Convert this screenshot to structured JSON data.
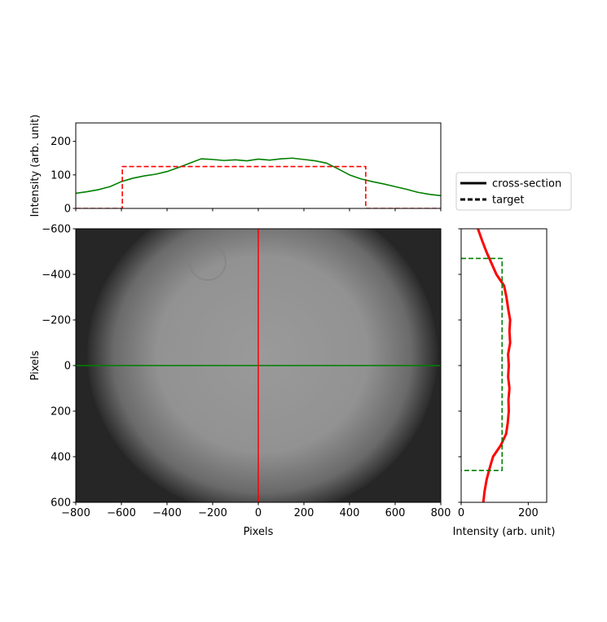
{
  "chart_data": [
    {
      "type": "line",
      "ylabel": "Intensity (arb. unit)",
      "xlim": [
        -800,
        800
      ],
      "ylim": [
        0,
        255
      ],
      "xticks": [
        -800,
        -600,
        -400,
        -200,
        0,
        200,
        400,
        600,
        800
      ],
      "yticks": [
        0,
        100,
        200
      ],
      "series": [
        {
          "name": "cross-section",
          "color": "#008000",
          "style": "solid",
          "x": [
            -800,
            -750,
            -700,
            -650,
            -600,
            -550,
            -500,
            -450,
            -400,
            -350,
            -300,
            -250,
            -200,
            -150,
            -100,
            -50,
            0,
            50,
            100,
            150,
            200,
            250,
            300,
            350,
            400,
            450,
            500,
            550,
            600,
            650,
            700,
            750,
            800
          ],
          "values": [
            45,
            50,
            56,
            65,
            80,
            90,
            97,
            102,
            110,
            122,
            135,
            148,
            146,
            143,
            145,
            142,
            147,
            144,
            148,
            150,
            146,
            142,
            135,
            118,
            100,
            88,
            80,
            73,
            65,
            57,
            48,
            42,
            38
          ]
        },
        {
          "name": "target",
          "color": "#ff0000",
          "style": "dashed",
          "x": [
            -800,
            -596,
            -596,
            471,
            471,
            800
          ],
          "values": [
            0,
            0,
            125,
            125,
            0,
            0
          ]
        }
      ]
    },
    {
      "type": "image",
      "xlabel": "Pixels",
      "ylabel": "Pixels",
      "xlim": [
        -800,
        800
      ],
      "ylim": [
        600,
        -600
      ],
      "xticks": [
        {
          "value": -800,
          "label": "−800"
        },
        {
          "value": -600,
          "label": "−600"
        },
        {
          "value": -400,
          "label": "−400"
        },
        {
          "value": -200,
          "label": "−200"
        },
        0,
        200,
        400,
        600,
        800
      ],
      "yticks": [
        {
          "value": -600,
          "label": "−600"
        },
        {
          "value": -400,
          "label": "−400"
        },
        {
          "value": -200,
          "label": "−200"
        },
        0,
        200,
        400,
        600
      ],
      "hline": {
        "value": 0,
        "color": "#008000"
      },
      "vline": {
        "value": 0,
        "color": "#ff0000"
      }
    },
    {
      "type": "line",
      "xlabel": "Intensity (arb. unit)",
      "xlim": [
        0,
        255
      ],
      "ylim": [
        600,
        -600
      ],
      "xticks": [
        0,
        200
      ],
      "yticks": [
        -600,
        -400,
        -200,
        0,
        200,
        400,
        600
      ],
      "series": [
        {
          "name": "cross-section",
          "color": "#ff0000",
          "style": "solid",
          "y": [
            -600,
            -550,
            -500,
            -450,
            -400,
            -350,
            -300,
            -250,
            -200,
            -150,
            -100,
            -50,
            0,
            50,
            100,
            150,
            200,
            250,
            300,
            350,
            400,
            450,
            500,
            550,
            600
          ],
          "values": [
            50,
            62,
            75,
            90,
            105,
            128,
            135,
            140,
            146,
            144,
            146,
            140,
            142,
            140,
            144,
            141,
            142,
            139,
            134,
            118,
            95,
            85,
            76,
            70,
            66
          ]
        },
        {
          "name": "target",
          "color": "#008000",
          "style": "dashed",
          "y": [
            -470,
            -470,
            460,
            460
          ],
          "values": [
            0,
            122,
            122,
            0
          ]
        }
      ]
    }
  ]
}
